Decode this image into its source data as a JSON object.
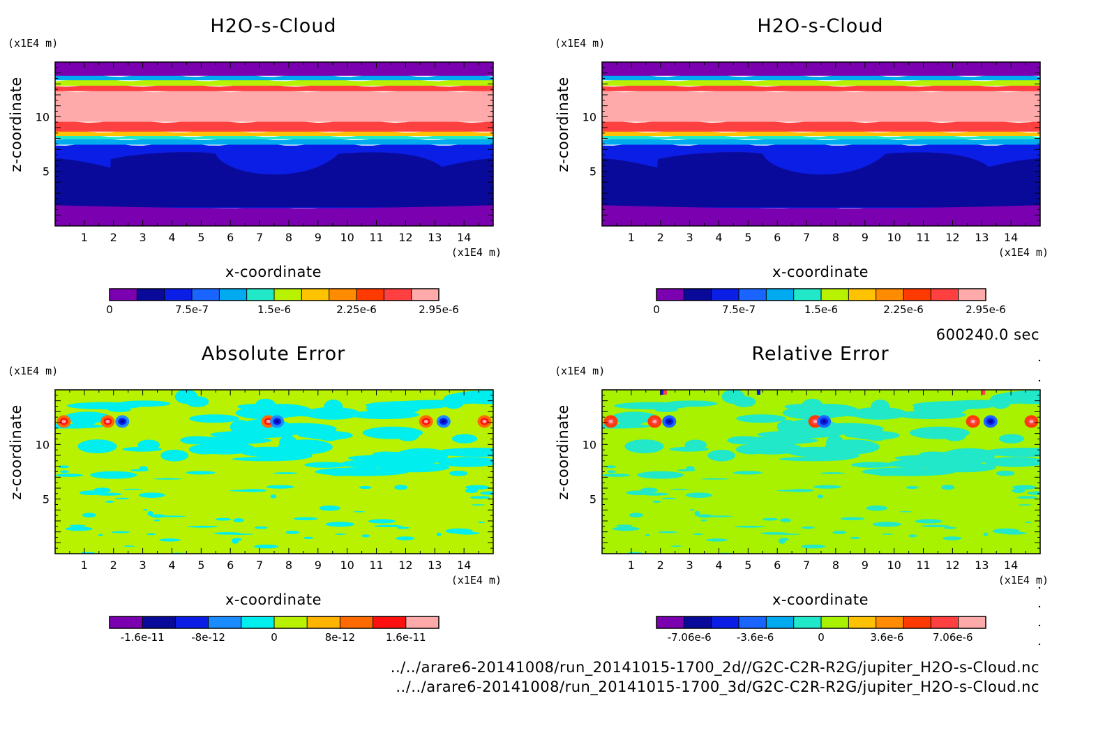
{
  "chart_data": [
    {
      "type": "heatmap",
      "title": "H2O-s-Cloud",
      "xlabel": "x-coordinate",
      "ylabel": "z-coordinate",
      "x_unit": "(x1E4 m)",
      "y_unit": "(x1E4 m)",
      "xlim": [
        0,
        15
      ],
      "ylim": [
        0,
        15
      ],
      "x_ticks": [
        "1",
        "2",
        "3",
        "4",
        "5",
        "6",
        "7",
        "8",
        "9",
        "10",
        "11",
        "12",
        "13",
        "14"
      ],
      "y_ticks": [
        "5",
        "10"
      ],
      "colorbar_labels": [
        "0",
        "7.5e-7",
        "1.5e-6",
        "2.25e-6",
        "2.95e-6"
      ],
      "colormap": [
        "#7a00b0",
        "#0a0a9a",
        "#0a1ee6",
        "#1a64ff",
        "#00aaf0",
        "#20e8c8",
        "#b8f200",
        "#ffc200",
        "#ff8c00",
        "#ff3a00",
        "#ff4040",
        "#ffaaaa"
      ],
      "z_bands": [
        {
          "z": [
            0.0,
            1.7
          ],
          "value": 0
        },
        {
          "z": [
            1.7,
            7.5
          ],
          "value": 3.8e-07
        },
        {
          "z": [
            7.5,
            8.0
          ],
          "value": 7.5e-07
        },
        {
          "z": [
            8.0,
            8.3
          ],
          "value": 1.2e-06
        },
        {
          "z": [
            8.3,
            8.7
          ],
          "value": 1.9e-06
        },
        {
          "z": [
            8.7,
            9.6
          ],
          "value": 2.6e-06
        },
        {
          "z": [
            9.6,
            12.4
          ],
          "value": 2.95e-06
        },
        {
          "z": [
            12.4,
            12.9
          ],
          "value": 2.6e-06
        },
        {
          "z": [
            12.9,
            13.4
          ],
          "value": 1.5e-06
        },
        {
          "z": [
            13.4,
            13.8
          ],
          "value": 7.5e-07
        },
        {
          "z": [
            13.8,
            15.0
          ],
          "value": 0
        }
      ]
    },
    {
      "type": "heatmap",
      "title": "H2O-s-Cloud",
      "xlabel": "x-coordinate",
      "ylabel": "z-coordinate",
      "x_unit": "(x1E4 m)",
      "y_unit": "(x1E4 m)",
      "xlim": [
        0,
        15
      ],
      "ylim": [
        0,
        15
      ],
      "x_ticks": [
        "1",
        "2",
        "3",
        "4",
        "5",
        "6",
        "7",
        "8",
        "9",
        "10",
        "11",
        "12",
        "13",
        "14"
      ],
      "y_ticks": [
        "5",
        "10"
      ],
      "colorbar_labels": [
        "0",
        "7.5e-7",
        "1.5e-6",
        "2.25e-6",
        "2.95e-6"
      ],
      "colormap": [
        "#7a00b0",
        "#0a0a9a",
        "#0a1ee6",
        "#1a64ff",
        "#00aaf0",
        "#20e8c8",
        "#b8f200",
        "#ffc200",
        "#ff8c00",
        "#ff3a00",
        "#ff4040",
        "#ffaaaa"
      ],
      "z_bands": [
        {
          "z": [
            0.0,
            1.7
          ],
          "value": 0
        },
        {
          "z": [
            1.7,
            7.5
          ],
          "value": 3.8e-07
        },
        {
          "z": [
            7.5,
            8.0
          ],
          "value": 7.5e-07
        },
        {
          "z": [
            8.0,
            8.3
          ],
          "value": 1.2e-06
        },
        {
          "z": [
            8.3,
            8.7
          ],
          "value": 1.9e-06
        },
        {
          "z": [
            8.7,
            9.6
          ],
          "value": 2.6e-06
        },
        {
          "z": [
            9.6,
            12.4
          ],
          "value": 2.95e-06
        },
        {
          "z": [
            12.4,
            12.9
          ],
          "value": 2.6e-06
        },
        {
          "z": [
            12.9,
            13.4
          ],
          "value": 1.5e-06
        },
        {
          "z": [
            13.4,
            13.8
          ],
          "value": 7.5e-07
        },
        {
          "z": [
            13.8,
            15.0
          ],
          "value": 0
        }
      ]
    },
    {
      "type": "heatmap",
      "title": "Absolute Error",
      "xlabel": "x-coordinate",
      "ylabel": "z-coordinate",
      "x_unit": "(x1E4 m)",
      "y_unit": "(x1E4 m)",
      "xlim": [
        0,
        15
      ],
      "ylim": [
        0,
        15
      ],
      "x_ticks": [
        "1",
        "2",
        "3",
        "4",
        "5",
        "6",
        "7",
        "8",
        "9",
        "10",
        "11",
        "12",
        "13",
        "14"
      ],
      "y_ticks": [
        "5",
        "10"
      ],
      "colorbar_labels": [
        "-1.6e-11",
        "-8e-12",
        "0",
        "8e-12",
        "1.6e-11"
      ],
      "colormap": [
        "#7a00b0",
        "#0a0a9a",
        "#0a1ee6",
        "#1a8cff",
        "#00eeee",
        "#b8f200",
        "#ffb400",
        "#ff6a00",
        "#ff1010",
        "#ffaaaa"
      ],
      "background_value": 0,
      "dipoles_at_z": 12.1,
      "dipoles_at_x": [
        0.3,
        1.8,
        2.3,
        7.3,
        7.6,
        12.7,
        13.3,
        14.7
      ]
    },
    {
      "type": "heatmap",
      "title": "Relative Error",
      "xlabel": "x-coordinate",
      "ylabel": "z-coordinate",
      "x_unit": "(x1E4 m)",
      "y_unit": "(x1E4 m)",
      "xlim": [
        0,
        15
      ],
      "ylim": [
        0,
        15
      ],
      "x_ticks": [
        "1",
        "2",
        "3",
        "4",
        "5",
        "6",
        "7",
        "8",
        "9",
        "10",
        "11",
        "12",
        "13",
        "14"
      ],
      "y_ticks": [
        "5",
        "10"
      ],
      "colorbar_labels": [
        "-7.06e-6",
        "-3.6e-6",
        "0",
        "3.6e-6",
        "7.06e-6"
      ],
      "colormap": [
        "#7a00b0",
        "#0a0a9a",
        "#0a1ee6",
        "#1a64ff",
        "#00aaf0",
        "#20e8c8",
        "#a8f200",
        "#ffc200",
        "#ff8c00",
        "#ff3a00",
        "#ff4040",
        "#ffaaaa"
      ],
      "background_value": 0,
      "dipoles_at_z": 12.1,
      "dipoles_at_x": [
        0.3,
        1.8,
        2.3,
        7.3,
        7.6,
        12.7,
        13.3,
        14.7
      ]
    }
  ],
  "time_label": "600240.0 sec",
  "footer": {
    "path_2d": "../../arare6-20141008/run_20141015-1700_2d//G2C-C2R-R2G/jupiter_H2O-s-Cloud.nc",
    "path_3d": "../../arare6-20141008/run_20141015-1700_3d/G2C-C2R-R2G/jupiter_H2O-s-Cloud.nc"
  }
}
